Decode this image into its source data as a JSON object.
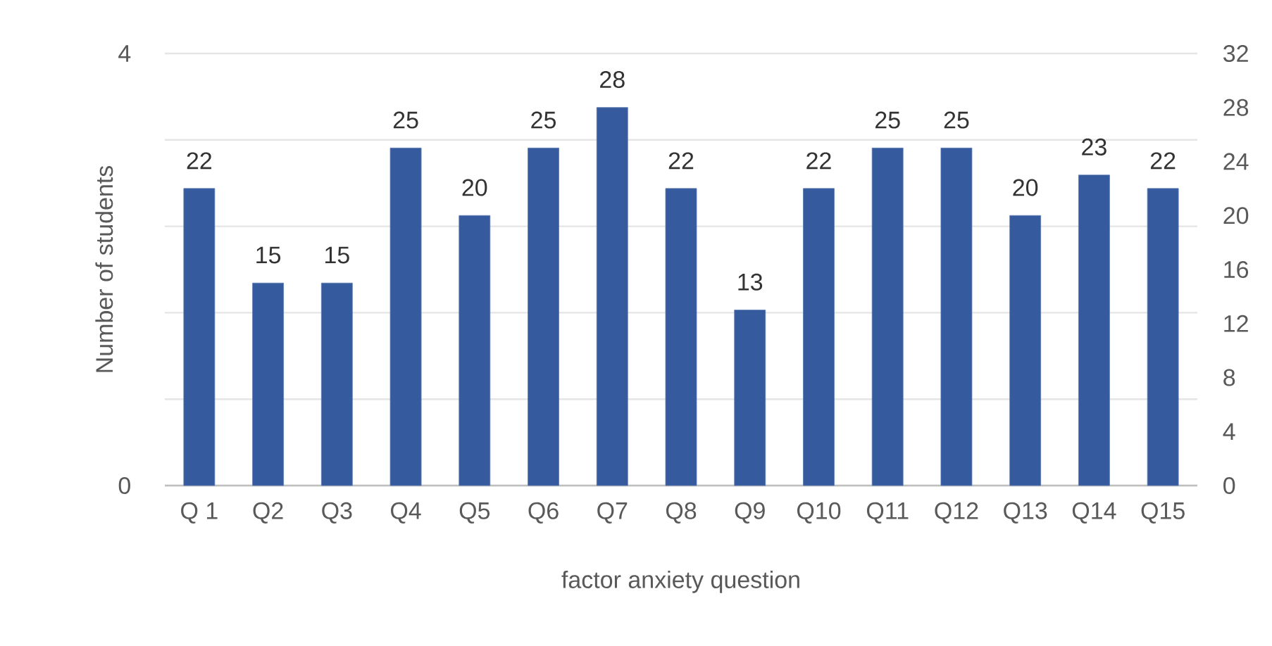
{
  "chart_data": {
    "type": "bar",
    "xlabel": "factor anxiety question",
    "ylabel": "Number of students",
    "categories": [
      "Q 1",
      "Q2",
      "Q3",
      "Q4",
      "Q5",
      "Q6",
      "Q7",
      "Q8",
      "Q9",
      "Q10",
      "Q11",
      "Q12",
      "Q13",
      "Q14",
      "Q15"
    ],
    "series": [
      {
        "axis": "y2",
        "color": "#355a9e",
        "values": [
          22,
          15,
          15,
          25,
          20,
          25,
          28,
          22,
          13,
          22,
          25,
          25,
          20,
          23,
          22
        ]
      }
    ],
    "ylim": [
      0,
      4
    ],
    "yticks": [
      0,
      {
        "value": 0.8,
        "label": null
      },
      {
        "value": 1.6,
        "label": null
      },
      {
        "value": 2.4,
        "label": null
      },
      {
        "value": 3.2,
        "label": null
      },
      4
    ],
    "y2lim": [
      0,
      32
    ],
    "y2ticks": [
      0,
      4,
      8,
      12,
      16,
      20,
      24,
      28,
      32
    ],
    "grid": "y",
    "data_labels": true
  }
}
